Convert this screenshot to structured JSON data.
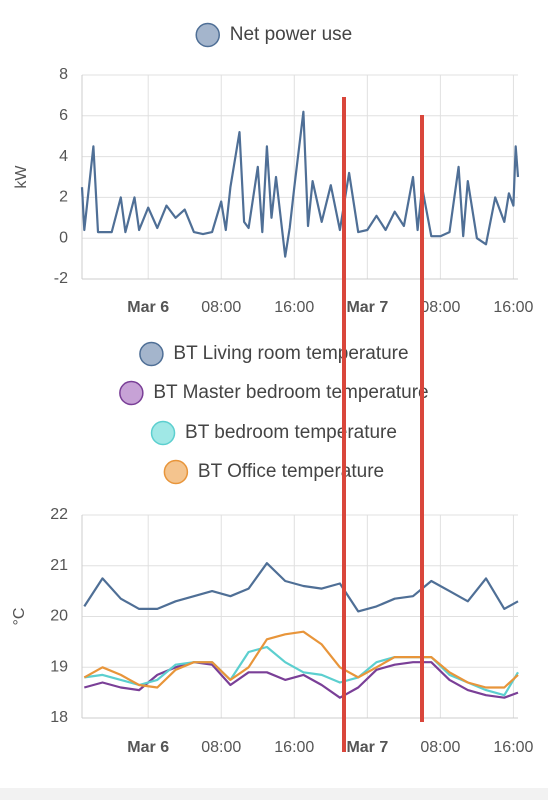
{
  "chart_data": [
    {
      "type": "line",
      "ylabel": "kW",
      "ylim": [
        -2,
        8
      ],
      "yticks": [
        -2,
        0,
        2,
        4,
        6,
        8
      ],
      "xlim": [
        "Mar 5 16:45",
        "Mar 7 16:30"
      ],
      "xticks": [
        {
          "value": "Mar 6 00:00",
          "label": "Mar 6"
        },
        {
          "value": "Mar 6 08:00",
          "label": "08:00"
        },
        {
          "value": "Mar 6 16:00",
          "label": "16:00"
        },
        {
          "value": "Mar 7 00:00",
          "label": "Mar 7"
        },
        {
          "value": "Mar 7 08:00",
          "label": "08:00"
        },
        {
          "value": "Mar 7 16:00",
          "label": "16:00"
        }
      ],
      "grid": true,
      "legend": "top",
      "x": [
        "Mar 5 16:45",
        "Mar 5 17:00",
        "Mar 5 18:00",
        "Mar 5 18:30",
        "Mar 5 20:00",
        "Mar 5 21:00",
        "Mar 5 21:30",
        "Mar 5 22:30",
        "Mar 5 23:00",
        "Mar 6 00:00",
        "Mar 6 01:00",
        "Mar 6 02:00",
        "Mar 6 03:00",
        "Mar 6 04:00",
        "Mar 6 05:00",
        "Mar 6 06:00",
        "Mar 6 07:00",
        "Mar 6 08:00",
        "Mar 6 08:30",
        "Mar 6 09:00",
        "Mar 6 10:00",
        "Mar 6 10:30",
        "Mar 6 11:00",
        "Mar 6 12:00",
        "Mar 6 12:30",
        "Mar 6 13:00",
        "Mar 6 13:30",
        "Mar 6 14:00",
        "Mar 6 15:00",
        "Mar 6 15:30",
        "Mar 6 16:00",
        "Mar 6 17:00",
        "Mar 6 17:30",
        "Mar 6 18:00",
        "Mar 6 19:00",
        "Mar 6 20:00",
        "Mar 6 21:00",
        "Mar 6 22:00",
        "Mar 6 23:00",
        "Mar 7 00:00",
        "Mar 7 01:00",
        "Mar 7 02:00",
        "Mar 7 03:00",
        "Mar 7 04:00",
        "Mar 7 05:00",
        "Mar 7 05:30",
        "Mar 7 06:00",
        "Mar 7 07:00",
        "Mar 7 08:00",
        "Mar 7 09:00",
        "Mar 7 10:00",
        "Mar 7 10:30",
        "Mar 7 11:00",
        "Mar 7 12:00",
        "Mar 7 13:00",
        "Mar 7 14:00",
        "Mar 7 15:00",
        "Mar 7 15:30",
        "Mar 7 16:00",
        "Mar 7 16:15",
        "Mar 7 16:30"
      ],
      "series": [
        {
          "name": "Net power use",
          "color": "#4f6f96",
          "marker_color": "#a4b5cc",
          "values": [
            2.5,
            0.4,
            4.5,
            0.3,
            0.3,
            2.0,
            0.3,
            2.0,
            0.4,
            1.5,
            0.5,
            1.6,
            1.0,
            1.4,
            0.3,
            0.2,
            0.3,
            1.8,
            0.4,
            2.5,
            5.2,
            0.8,
            0.5,
            3.5,
            0.3,
            4.5,
            1.0,
            3.0,
            -0.9,
            0.5,
            2.5,
            6.2,
            0.6,
            2.8,
            0.8,
            2.6,
            0.4,
            3.2,
            0.3,
            0.4,
            1.1,
            0.4,
            1.3,
            0.6,
            3.0,
            0.4,
            2.5,
            0.1,
            0.1,
            0.3,
            3.5,
            0.1,
            2.8,
            0.0,
            -0.3,
            2.0,
            0.8,
            2.2,
            1.6,
            4.5,
            3.0
          ]
        }
      ]
    },
    {
      "type": "line",
      "ylabel": "°C",
      "ylim": [
        18,
        22
      ],
      "yticks": [
        18,
        19,
        20,
        21,
        22
      ],
      "xlim": [
        "Mar 5 16:45",
        "Mar 7 16:30"
      ],
      "xticks": [
        {
          "value": "Mar 6 00:00",
          "label": "Mar 6"
        },
        {
          "value": "Mar 6 08:00",
          "label": "08:00"
        },
        {
          "value": "Mar 6 16:00",
          "label": "16:00"
        },
        {
          "value": "Mar 7 00:00",
          "label": "Mar 7"
        },
        {
          "value": "Mar 7 08:00",
          "label": "08:00"
        },
        {
          "value": "Mar 7 16:00",
          "label": "16:00"
        }
      ],
      "grid": true,
      "legend": "top",
      "x": [
        "Mar 5 17:00",
        "Mar 5 19:00",
        "Mar 5 21:00",
        "Mar 5 23:00",
        "Mar 6 01:00",
        "Mar 6 03:00",
        "Mar 6 05:00",
        "Mar 6 07:00",
        "Mar 6 09:00",
        "Mar 6 11:00",
        "Mar 6 13:00",
        "Mar 6 15:00",
        "Mar 6 17:00",
        "Mar 6 19:00",
        "Mar 6 21:00",
        "Mar 6 23:00",
        "Mar 7 01:00",
        "Mar 7 03:00",
        "Mar 7 05:00",
        "Mar 7 07:00",
        "Mar 7 09:00",
        "Mar 7 11:00",
        "Mar 7 13:00",
        "Mar 7 15:00",
        "Mar 7 16:30"
      ],
      "series": [
        {
          "name": "BT Living room temperature",
          "color": "#4f6f96",
          "marker_color": "#a4b5cc",
          "values": [
            20.2,
            20.75,
            20.35,
            20.15,
            20.15,
            20.3,
            20.4,
            20.5,
            20.4,
            20.55,
            21.05,
            20.7,
            20.6,
            20.55,
            20.65,
            20.1,
            20.2,
            20.35,
            20.4,
            20.7,
            20.5,
            20.3,
            20.75,
            20.15,
            20.3
          ]
        },
        {
          "name": "BT Master bedroom temperature",
          "color": "#7a3f97",
          "marker_color": "#c7a2d6",
          "values": [
            18.6,
            18.7,
            18.6,
            18.55,
            18.85,
            19.0,
            19.1,
            19.05,
            18.65,
            18.9,
            18.9,
            18.75,
            18.85,
            18.65,
            18.4,
            18.6,
            18.95,
            19.05,
            19.1,
            19.1,
            18.75,
            18.55,
            18.45,
            18.4,
            18.5
          ]
        },
        {
          "name": "BT bedroom temperature",
          "color": "#5ccfcf",
          "marker_color": "#a0e8e6",
          "values": [
            18.8,
            18.85,
            18.75,
            18.65,
            18.75,
            19.05,
            19.1,
            19.1,
            18.75,
            19.3,
            19.4,
            19.1,
            18.9,
            18.85,
            18.7,
            18.8,
            19.1,
            19.2,
            19.2,
            19.2,
            18.85,
            18.7,
            18.55,
            18.45,
            18.9
          ]
        },
        {
          "name": "BT Office temperature",
          "color": "#e8953a",
          "marker_color": "#f4c48e",
          "values": [
            18.8,
            19.0,
            18.85,
            18.65,
            18.6,
            18.95,
            19.1,
            19.1,
            18.75,
            19.0,
            19.55,
            19.65,
            19.7,
            19.45,
            19.0,
            18.8,
            19.0,
            19.2,
            19.2,
            19.2,
            18.9,
            18.7,
            18.6,
            18.6,
            18.85
          ]
        }
      ]
    }
  ]
}
